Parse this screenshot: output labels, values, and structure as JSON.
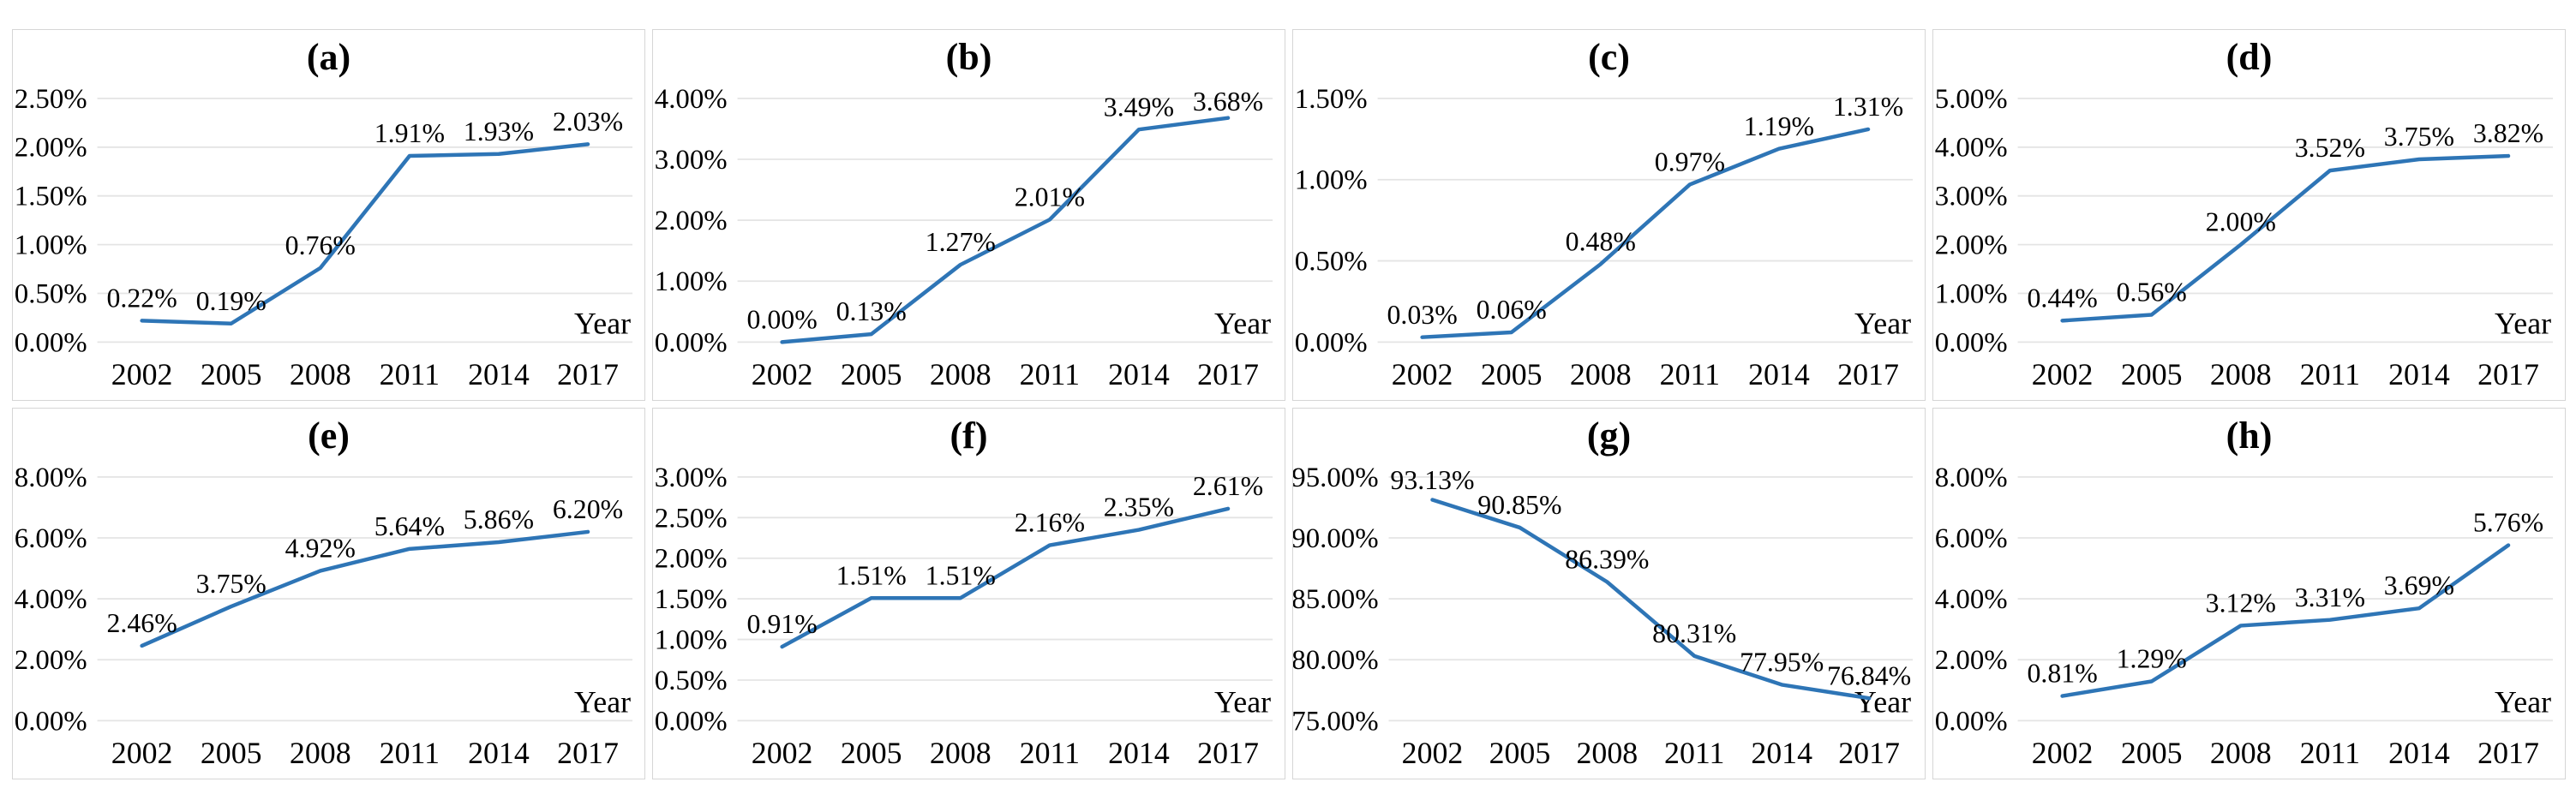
{
  "figure": {
    "x_axis_label": "Year",
    "x_categories": [
      "2002",
      "2005",
      "2008",
      "2011",
      "2014",
      "2017"
    ],
    "line_color": "#2E75B6",
    "grid_color": "#E4E4E4",
    "panel_border_color": "#D6D6D6",
    "text_color": "#000000",
    "legend": "none",
    "grid": "horizontal-only"
  },
  "chart_data": [
    {
      "type": "line",
      "title": "(a)",
      "xlabel": "Year",
      "categories": [
        "2002",
        "2005",
        "2008",
        "2011",
        "2014",
        "2017"
      ],
      "values": [
        0.22,
        0.19,
        0.76,
        1.91,
        1.93,
        2.03
      ],
      "point_labels": [
        "0.22%",
        "0.19%",
        "0.76%",
        "1.91%",
        "1.93%",
        "2.03%"
      ],
      "ylim": [
        0,
        2.5
      ],
      "ytick_step": 0.5,
      "ytick_labels": [
        "0.00%",
        "0.50%",
        "1.00%",
        "1.50%",
        "2.00%",
        "2.50%"
      ]
    },
    {
      "type": "line",
      "title": "(b)",
      "xlabel": "Year",
      "categories": [
        "2002",
        "2005",
        "2008",
        "2011",
        "2014",
        "2017"
      ],
      "values": [
        0.0,
        0.13,
        1.27,
        2.01,
        3.49,
        3.68
      ],
      "point_labels": [
        "0.00%",
        "0.13%",
        "1.27%",
        "2.01%",
        "3.49%",
        "3.68%"
      ],
      "ylim": [
        0,
        4
      ],
      "ytick_step": 1,
      "ytick_labels": [
        "0.00%",
        "1.00%",
        "2.00%",
        "3.00%",
        "4.00%"
      ]
    },
    {
      "type": "line",
      "title": "(c)",
      "xlabel": "Year",
      "categories": [
        "2002",
        "2005",
        "2008",
        "2011",
        "2014",
        "2017"
      ],
      "values": [
        0.03,
        0.06,
        0.48,
        0.97,
        1.19,
        1.31
      ],
      "point_labels": [
        "0.03%",
        "0.06%",
        "0.48%",
        "0.97%",
        "1.19%",
        "1.31%"
      ],
      "ylim": [
        0,
        1.5
      ],
      "ytick_step": 0.5,
      "ytick_labels": [
        "0.00%",
        "0.50%",
        "1.00%",
        "1.50%"
      ]
    },
    {
      "type": "line",
      "title": "(d)",
      "xlabel": "Year",
      "categories": [
        "2002",
        "2005",
        "2008",
        "2011",
        "2014",
        "2017"
      ],
      "values": [
        0.44,
        0.56,
        2.0,
        3.52,
        3.75,
        3.82
      ],
      "point_labels": [
        "0.44%",
        "0.56%",
        "2.00%",
        "3.52%",
        "3.75%",
        "3.82%"
      ],
      "ylim": [
        0,
        5
      ],
      "ytick_step": 1,
      "ytick_labels": [
        "0.00%",
        "1.00%",
        "2.00%",
        "3.00%",
        "4.00%",
        "5.00%"
      ]
    },
    {
      "type": "line",
      "title": "(e)",
      "xlabel": "Year",
      "categories": [
        "2002",
        "2005",
        "2008",
        "2011",
        "2014",
        "2017"
      ],
      "values": [
        2.46,
        3.75,
        4.92,
        5.64,
        5.86,
        6.2
      ],
      "point_labels": [
        "2.46%",
        "3.75%",
        "4.92%",
        "5.64%",
        "5.86%",
        "6.20%"
      ],
      "ylim": [
        0,
        8
      ],
      "ytick_step": 2,
      "ytick_labels": [
        "0.00%",
        "2.00%",
        "4.00%",
        "6.00%",
        "8.00%"
      ]
    },
    {
      "type": "line",
      "title": "(f)",
      "xlabel": "Year",
      "categories": [
        "2002",
        "2005",
        "2008",
        "2011",
        "2014",
        "2017"
      ],
      "values": [
        0.91,
        1.51,
        1.51,
        2.16,
        2.35,
        2.61
      ],
      "point_labels": [
        "0.91%",
        "1.51%",
        "1.51%",
        "2.16%",
        "2.35%",
        "2.61%"
      ],
      "ylim": [
        0,
        3
      ],
      "ytick_step": 0.5,
      "ytick_labels": [
        "0.00%",
        "0.50%",
        "1.00%",
        "1.50%",
        "2.00%",
        "2.50%",
        "3.00%"
      ]
    },
    {
      "type": "line",
      "title": "(g)",
      "xlabel": "Year",
      "categories": [
        "2002",
        "2005",
        "2008",
        "2011",
        "2014",
        "2017"
      ],
      "values": [
        93.13,
        90.85,
        86.39,
        80.31,
        77.95,
        76.84
      ],
      "point_labels": [
        "93.13%",
        "90.85%",
        "86.39%",
        "80.31%",
        "77.95%",
        "76.84%"
      ],
      "ylim": [
        75,
        95
      ],
      "ytick_step": 5,
      "ytick_labels": [
        "75.00%",
        "80.00%",
        "85.00%",
        "90.00%",
        "95.00%"
      ]
    },
    {
      "type": "line",
      "title": "(h)",
      "xlabel": "Year",
      "categories": [
        "2002",
        "2005",
        "2008",
        "2011",
        "2014",
        "2017"
      ],
      "values": [
        0.81,
        1.29,
        3.12,
        3.31,
        3.69,
        5.76
      ],
      "point_labels": [
        "0.81%",
        "1.29%",
        "3.12%",
        "3.31%",
        "3.69%",
        "5.76%"
      ],
      "ylim": [
        0,
        8
      ],
      "ytick_step": 2,
      "ytick_labels": [
        "0.00%",
        "2.00%",
        "4.00%",
        "6.00%",
        "8.00%"
      ]
    }
  ]
}
